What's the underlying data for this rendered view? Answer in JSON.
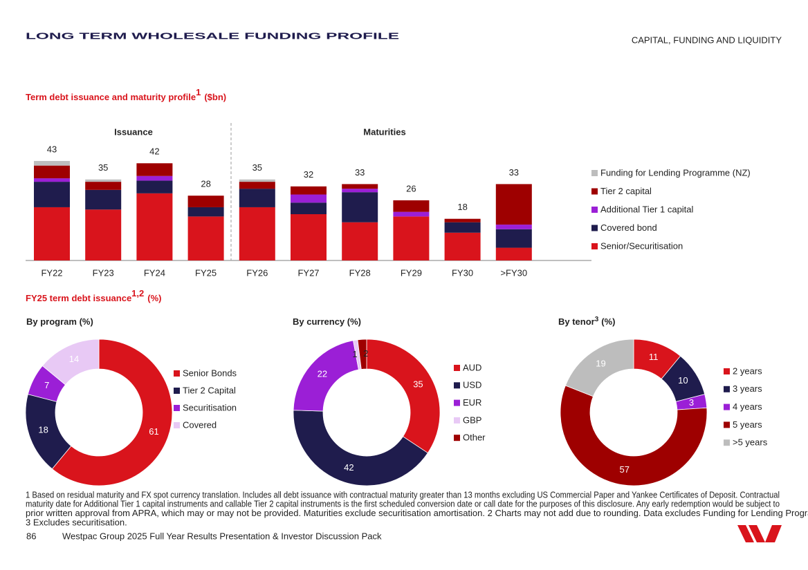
{
  "header": {
    "title": "LONG TERM WHOLESALE FUNDING PROFILE",
    "section": "CAPITAL, FUNDING AND LIQUIDITY"
  },
  "section2": {
    "title": "FY25 term debt issuance",
    "sup": "1,2",
    "unit": "(%)"
  },
  "chart_data": [
    {
      "type": "bar",
      "stacked": true,
      "title": "Term debt issuance and maturity profile",
      "title_sup": "1",
      "title_unit": "($bn)",
      "groups": [
        "Issuance",
        "Maturities"
      ],
      "categories": [
        "FY22",
        "FY23",
        "FY24",
        "FY25",
        "FY26",
        "FY27",
        "FY28",
        "FY29",
        "FY30",
        ">FY30"
      ],
      "totals": [
        43,
        35,
        42,
        28,
        35,
        32,
        33,
        26,
        18,
        33
      ],
      "series": [
        {
          "name": "Senior/Securitisation",
          "color": "#d9141c",
          "values": [
            23,
            22,
            29,
            19,
            23,
            20,
            16.5,
            19,
            12,
            5.5
          ]
        },
        {
          "name": "Covered bond",
          "color": "#1f1c4d",
          "values": [
            11,
            8.5,
            5.5,
            4,
            8,
            5,
            13,
            0,
            4.5,
            8
          ]
        },
        {
          "name": "Additional Tier 1 capital",
          "color": "#9b1fd6",
          "values": [
            1.5,
            0,
            2,
            0,
            0,
            3.5,
            1.5,
            2,
            0,
            2
          ]
        },
        {
          "name": "Tier 2 capital",
          "color": "#9e0000",
          "values": [
            5.5,
            3.5,
            5.5,
            5,
            3,
            3.5,
            2,
            5,
            1.5,
            17.5
          ]
        },
        {
          "name": "Funding for Lending Programme (NZ)",
          "color": "#bdbdbd",
          "values": [
            2,
            1,
            0,
            0,
            1,
            0,
            0,
            0,
            0,
            0
          ]
        }
      ]
    },
    {
      "type": "donut",
      "title": "By program (%)",
      "categories": [
        "Senior Bonds",
        "Tier 2 Capital",
        "Securitisation",
        "Covered"
      ],
      "values": [
        61,
        18,
        7,
        14
      ],
      "colors": [
        "#d9141c",
        "#1f1c4d",
        "#9b1fd6",
        "#e8c9f5"
      ]
    },
    {
      "type": "donut",
      "title": "By currency (%)",
      "categories": [
        "AUD",
        "USD",
        "EUR",
        "GBP",
        "Other"
      ],
      "values": [
        35,
        42,
        22,
        1,
        2
      ],
      "colors": [
        "#d9141c",
        "#1f1c4d",
        "#9b1fd6",
        "#e8c9f5",
        "#9e0000"
      ]
    },
    {
      "type": "donut",
      "title": "By tenor",
      "title_sup": "3",
      "title_unit": "(%)",
      "categories": [
        "2 years",
        "3 years",
        "4 years",
        "5 years",
        ">5 years"
      ],
      "values": [
        11,
        10,
        3,
        57,
        19
      ],
      "colors": [
        "#d9141c",
        "#1f1c4d",
        "#9b1fd6",
        "#9e0000",
        "#bdbdbd"
      ]
    }
  ],
  "footnotes": [
    "1 Based on residual maturity and FX spot currency translation. Includes all debt issuance with contractual maturity greater than 13 months excluding US Commercial Paper and Yankee Certificates of Deposit. Contractual",
    "maturity date for Additional Tier 1 capital instruments and callable Tier 2 capital instruments is the first scheduled conversion date or call date for the purposes of this disclosure. Any early redemption would be subject to",
    "prior written approval from APRA, which may or may not be provided. Maturities exclude securitisation amortisation. 2 Charts may not add due to rounding. Data excludes Funding for Lending Programme.",
    "3 Excludes securitisation."
  ],
  "footer": {
    "page": "86",
    "text": "Westpac Group 2025 Full Year Results Presentation & Investor Discussion Pack"
  }
}
